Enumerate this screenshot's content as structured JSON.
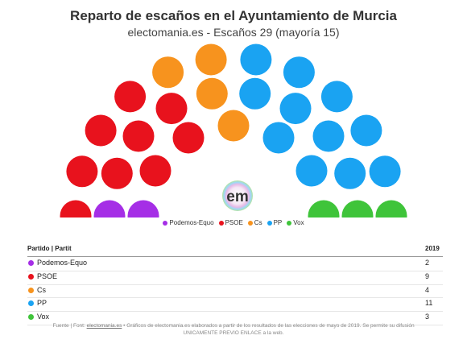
{
  "title": "Reparto de escaños en el Ayuntamiento de Murcia",
  "subtitle": "electomania.es - Escaños 29 (mayoría 15)",
  "logo_text": "em",
  "table": {
    "header_left": "Partido | Partit",
    "header_right": "2019"
  },
  "footer": {
    "line1_prefix": "Fuente | Font: ",
    "line1_link": "electomania.es",
    "line1_suffix": " • Gráficos de electomania.es elaborados a partir de los resultados de las elecciones de mayo de 2019. Se permite su difusión",
    "line2": "UNICAMENTE PREVIO ENLACE a la web."
  },
  "chart_data": {
    "type": "parliament",
    "title": "Reparto de escaños en el Ayuntamiento de Murcia",
    "subtitle": "electomania.es - Escaños 29 (mayoría 15)",
    "total_seats": 29,
    "majority": 15,
    "series": [
      {
        "name": "Podemos-Equo",
        "seats": 2,
        "color": "#a52ee6"
      },
      {
        "name": "PSOE",
        "seats": 9,
        "color": "#e8121d"
      },
      {
        "name": "Cs",
        "seats": 4,
        "color": "#f7931e"
      },
      {
        "name": "PP",
        "seats": 11,
        "color": "#1aa3f2"
      },
      {
        "name": "Vox",
        "seats": 3,
        "color": "#3fc43a"
      }
    ],
    "legend_position": "bottom"
  }
}
